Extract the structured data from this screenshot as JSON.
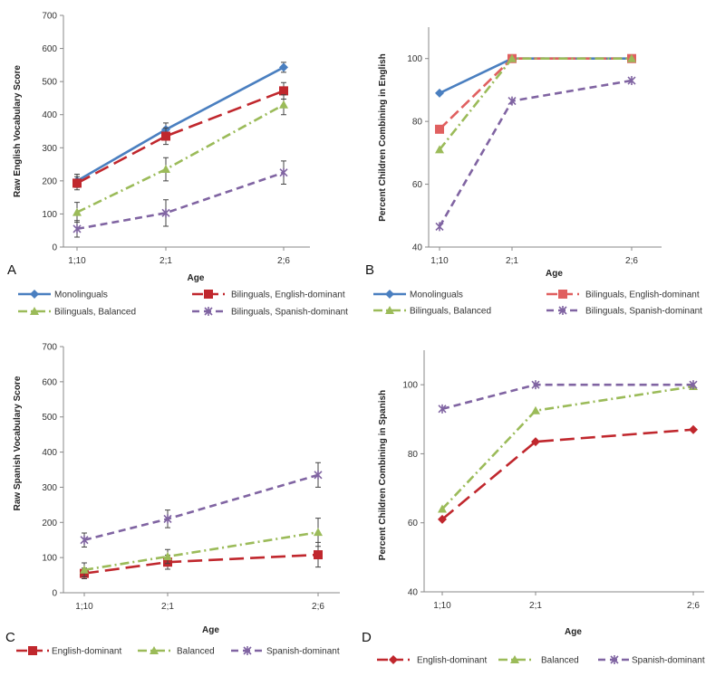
{
  "chart_data": [
    {
      "type": "line",
      "panel": "A",
      "ylabel": "Raw English  Vocabulary  Score",
      "xlabel": "Age",
      "categories": [
        "1;10",
        "2;1",
        "2;6"
      ],
      "ylim": [
        0,
        700
      ],
      "yticks": [
        0,
        100,
        200,
        300,
        400,
        500,
        600,
        700
      ],
      "error_bars": true,
      "series": [
        {
          "name": "Monolinguals",
          "values": [
            200,
            355,
            543
          ],
          "errors": [
            20,
            20,
            15
          ],
          "color": "#4a7fc0",
          "dash": "",
          "marker": "diamond"
        },
        {
          "name": "Bilinguals, English-dominant",
          "values": [
            193,
            335,
            472
          ],
          "errors": [
            20,
            25,
            25
          ],
          "color": "#c0272d",
          "dash": "16,7",
          "marker": "square"
        },
        {
          "name": "Bilinguals, Balanced",
          "values": [
            105,
            235,
            430
          ],
          "errors": [
            30,
            35,
            30
          ],
          "color": "#9bbb59",
          "dash": "10,4,2,4",
          "marker": "triangle"
        },
        {
          "name": "Bilinguals, Spanish-dominant",
          "values": [
            55,
            103,
            225
          ],
          "errors": [
            25,
            40,
            35
          ],
          "color": "#8064a2",
          "dash": "8,5",
          "marker": "x"
        }
      ]
    },
    {
      "type": "line",
      "panel": "B",
      "ylabel": "Percent Children Combining in English",
      "xlabel": "Age",
      "categories": [
        "1;10",
        "2;1",
        "2;6"
      ],
      "ylim": [
        40,
        110
      ],
      "yticks": [
        40,
        60,
        80,
        100
      ],
      "error_bars": false,
      "series": [
        {
          "name": "Monolinguals",
          "values": [
            89,
            100,
            100
          ],
          "color": "#4a7fc0",
          "dash": "",
          "marker": "diamond"
        },
        {
          "name": "Bilinguals, English-dominant",
          "values": [
            77.5,
            100,
            100
          ],
          "color": "#e06060",
          "dash": "12,5",
          "marker": "square"
        },
        {
          "name": "Bilinguals, Balanced",
          "values": [
            71,
            100,
            100
          ],
          "color": "#9bbb59",
          "dash": "10,4,2,4",
          "marker": "triangle"
        },
        {
          "name": "Bilinguals, Spanish-dominant",
          "values": [
            46.5,
            86.5,
            93
          ],
          "color": "#8064a2",
          "dash": "8,5",
          "marker": "x"
        }
      ]
    },
    {
      "type": "line",
      "panel": "C",
      "ylabel": "Raw Spanish  Vocabulary  Score",
      "xlabel": "Age",
      "categories": [
        "1;10",
        "2;1",
        "2;6"
      ],
      "ylim": [
        0,
        700
      ],
      "yticks": [
        0,
        100,
        200,
        300,
        400,
        500,
        600,
        700
      ],
      "error_bars": true,
      "series": [
        {
          "name": "English-dominant",
          "values": [
            55,
            87,
            108
          ],
          "errors": [
            15,
            20,
            35
          ],
          "color": "#c0272d",
          "dash": "16,7",
          "marker": "square"
        },
        {
          "name": "Balanced",
          "values": [
            65,
            103,
            172
          ],
          "errors": [
            20,
            20,
            40
          ],
          "color": "#9bbb59",
          "dash": "10,4,2,4",
          "marker": "triangle"
        },
        {
          "name": "Spanish-dominant",
          "values": [
            150,
            210,
            335
          ],
          "errors": [
            20,
            25,
            35
          ],
          "color": "#8064a2",
          "dash": "8,5",
          "marker": "x"
        }
      ]
    },
    {
      "type": "line",
      "panel": "D",
      "ylabel": "Percent Children Combining in Spanish",
      "xlabel": "Age",
      "categories": [
        "1;10",
        "2;1",
        "2;6"
      ],
      "ylim": [
        40,
        110
      ],
      "yticks": [
        40,
        60,
        80,
        100
      ],
      "error_bars": false,
      "series": [
        {
          "name": "English-dominant",
          "values": [
            61,
            83.5,
            87
          ],
          "color": "#c0272d",
          "dash": "16,7",
          "marker": "diamond"
        },
        {
          "name": "Balanced",
          "values": [
            64,
            92.5,
            99.5
          ],
          "color": "#9bbb59",
          "dash": "10,4,2,4",
          "marker": "triangle"
        },
        {
          "name": "Spanish-dominant",
          "values": [
            93,
            100,
            100
          ],
          "color": "#8064a2",
          "dash": "8,5",
          "marker": "x"
        }
      ]
    }
  ]
}
